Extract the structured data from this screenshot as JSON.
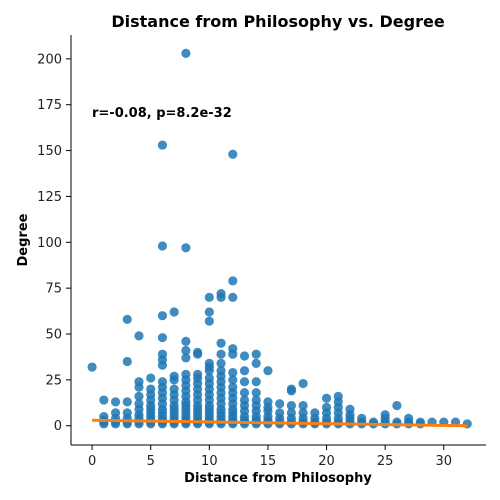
{
  "chart_data": {
    "type": "scatter",
    "title": "Distance from Philosophy vs. Degree",
    "xlabel": "Distance from Philosophy",
    "ylabel": "Degree",
    "annotation": "r=-0.08, p=8.2e-32",
    "xlim": [
      -1.8,
      33.6
    ],
    "ylim": [
      -10.5,
      213
    ],
    "xticks": [
      0,
      5,
      10,
      15,
      20,
      25,
      30
    ],
    "yticks": [
      0,
      25,
      50,
      75,
      100,
      125,
      150,
      175,
      200
    ],
    "point_color": "#1f77b4",
    "trend_color": "#ff7f0e",
    "points": [
      [
        0,
        32
      ],
      [
        1,
        1
      ],
      [
        1,
        2
      ],
      [
        1,
        3
      ],
      [
        1,
        5
      ],
      [
        1,
        14
      ],
      [
        2,
        1
      ],
      [
        2,
        2
      ],
      [
        2,
        4
      ],
      [
        2,
        7
      ],
      [
        2,
        13
      ],
      [
        3,
        1
      ],
      [
        3,
        2
      ],
      [
        3,
        4
      ],
      [
        3,
        7
      ],
      [
        3,
        13
      ],
      [
        3,
        35
      ],
      [
        3,
        58
      ],
      [
        4,
        1
      ],
      [
        4,
        2
      ],
      [
        4,
        4
      ],
      [
        4,
        6
      ],
      [
        4,
        9
      ],
      [
        4,
        12
      ],
      [
        4,
        16
      ],
      [
        4,
        21
      ],
      [
        4,
        24
      ],
      [
        4,
        49
      ],
      [
        5,
        1
      ],
      [
        5,
        2
      ],
      [
        5,
        3
      ],
      [
        5,
        5
      ],
      [
        5,
        7
      ],
      [
        5,
        9
      ],
      [
        5,
        11
      ],
      [
        5,
        14
      ],
      [
        5,
        17
      ],
      [
        5,
        20
      ],
      [
        5,
        26
      ],
      [
        6,
        1
      ],
      [
        6,
        2
      ],
      [
        6,
        3
      ],
      [
        6,
        5
      ],
      [
        6,
        7
      ],
      [
        6,
        9
      ],
      [
        6,
        12
      ],
      [
        6,
        15
      ],
      [
        6,
        18
      ],
      [
        6,
        21
      ],
      [
        6,
        24
      ],
      [
        6,
        33
      ],
      [
        6,
        36
      ],
      [
        6,
        39
      ],
      [
        6,
        48
      ],
      [
        6,
        60
      ],
      [
        6,
        98
      ],
      [
        6,
        153
      ],
      [
        7,
        1
      ],
      [
        7,
        2
      ],
      [
        7,
        3
      ],
      [
        7,
        5
      ],
      [
        7,
        7
      ],
      [
        7,
        9
      ],
      [
        7,
        11
      ],
      [
        7,
        14
      ],
      [
        7,
        17
      ],
      [
        7,
        20
      ],
      [
        7,
        25
      ],
      [
        7,
        27
      ],
      [
        7,
        62
      ],
      [
        8,
        1
      ],
      [
        8,
        2
      ],
      [
        8,
        3
      ],
      [
        8,
        5
      ],
      [
        8,
        7
      ],
      [
        8,
        9
      ],
      [
        8,
        11
      ],
      [
        8,
        13
      ],
      [
        8,
        16
      ],
      [
        8,
        19
      ],
      [
        8,
        22
      ],
      [
        8,
        25
      ],
      [
        8,
        28
      ],
      [
        8,
        37
      ],
      [
        8,
        41
      ],
      [
        8,
        46
      ],
      [
        8,
        97
      ],
      [
        8,
        203
      ],
      [
        9,
        1
      ],
      [
        9,
        2
      ],
      [
        9,
        3
      ],
      [
        9,
        5
      ],
      [
        9,
        7
      ],
      [
        9,
        9
      ],
      [
        9,
        11
      ],
      [
        9,
        14
      ],
      [
        9,
        17
      ],
      [
        9,
        20
      ],
      [
        9,
        23
      ],
      [
        9,
        26
      ],
      [
        9,
        28
      ],
      [
        9,
        39
      ],
      [
        9,
        40
      ],
      [
        10,
        1
      ],
      [
        10,
        2
      ],
      [
        10,
        3
      ],
      [
        10,
        5
      ],
      [
        10,
        7
      ],
      [
        10,
        9
      ],
      [
        10,
        11
      ],
      [
        10,
        14
      ],
      [
        10,
        17
      ],
      [
        10,
        20
      ],
      [
        10,
        23
      ],
      [
        10,
        26
      ],
      [
        10,
        30
      ],
      [
        10,
        32
      ],
      [
        10,
        34
      ],
      [
        10,
        57
      ],
      [
        10,
        62
      ],
      [
        10,
        70
      ],
      [
        11,
        1
      ],
      [
        11,
        2
      ],
      [
        11,
        3
      ],
      [
        11,
        5
      ],
      [
        11,
        7
      ],
      [
        11,
        9
      ],
      [
        11,
        12
      ],
      [
        11,
        15
      ],
      [
        11,
        18
      ],
      [
        11,
        21
      ],
      [
        11,
        24
      ],
      [
        11,
        27
      ],
      [
        11,
        30
      ],
      [
        11,
        34
      ],
      [
        11,
        39
      ],
      [
        11,
        45
      ],
      [
        11,
        70
      ],
      [
        11,
        72
      ],
      [
        12,
        1
      ],
      [
        12,
        2
      ],
      [
        12,
        3
      ],
      [
        12,
        5
      ],
      [
        12,
        7
      ],
      [
        12,
        9
      ],
      [
        12,
        12
      ],
      [
        12,
        15
      ],
      [
        12,
        18
      ],
      [
        12,
        21
      ],
      [
        12,
        25
      ],
      [
        12,
        29
      ],
      [
        12,
        39
      ],
      [
        12,
        42
      ],
      [
        12,
        70
      ],
      [
        12,
        79
      ],
      [
        12,
        148
      ],
      [
        13,
        1
      ],
      [
        13,
        2
      ],
      [
        13,
        3
      ],
      [
        13,
        5
      ],
      [
        13,
        8
      ],
      [
        13,
        11
      ],
      [
        13,
        14
      ],
      [
        13,
        18
      ],
      [
        13,
        24
      ],
      [
        13,
        30
      ],
      [
        13,
        38
      ],
      [
        14,
        1
      ],
      [
        14,
        2
      ],
      [
        14,
        3
      ],
      [
        14,
        5
      ],
      [
        14,
        8
      ],
      [
        14,
        11
      ],
      [
        14,
        14
      ],
      [
        14,
        18
      ],
      [
        14,
        24
      ],
      [
        14,
        34
      ],
      [
        14,
        39
      ],
      [
        15,
        1
      ],
      [
        15,
        2
      ],
      [
        15,
        3
      ],
      [
        15,
        5
      ],
      [
        15,
        8
      ],
      [
        15,
        10
      ],
      [
        15,
        13
      ],
      [
        15,
        30
      ],
      [
        16,
        1
      ],
      [
        16,
        2
      ],
      [
        16,
        4
      ],
      [
        16,
        7
      ],
      [
        16,
        12
      ],
      [
        17,
        1
      ],
      [
        17,
        2
      ],
      [
        17,
        4
      ],
      [
        17,
        7
      ],
      [
        17,
        11
      ],
      [
        17,
        19
      ],
      [
        17,
        20
      ],
      [
        18,
        1
      ],
      [
        18,
        2
      ],
      [
        18,
        4
      ],
      [
        18,
        7
      ],
      [
        18,
        11
      ],
      [
        18,
        23
      ],
      [
        19,
        1
      ],
      [
        19,
        2
      ],
      [
        19,
        4
      ],
      [
        19,
        7
      ],
      [
        20,
        1
      ],
      [
        20,
        2
      ],
      [
        20,
        4
      ],
      [
        20,
        7
      ],
      [
        20,
        10
      ],
      [
        20,
        15
      ],
      [
        21,
        1
      ],
      [
        21,
        2
      ],
      [
        21,
        4
      ],
      [
        21,
        7
      ],
      [
        21,
        10
      ],
      [
        21,
        13
      ],
      [
        21,
        16
      ],
      [
        22,
        1
      ],
      [
        22,
        2
      ],
      [
        22,
        4
      ],
      [
        22,
        6
      ],
      [
        22,
        9
      ],
      [
        23,
        1
      ],
      [
        23,
        2
      ],
      [
        23,
        4
      ],
      [
        24,
        1
      ],
      [
        24,
        2
      ],
      [
        25,
        1
      ],
      [
        25,
        2
      ],
      [
        25,
        4
      ],
      [
        25,
        6
      ],
      [
        26,
        1
      ],
      [
        26,
        2
      ],
      [
        26,
        11
      ],
      [
        27,
        1
      ],
      [
        27,
        2
      ],
      [
        27,
        4
      ],
      [
        28,
        1
      ],
      [
        28,
        2
      ],
      [
        29,
        2
      ],
      [
        30,
        2
      ],
      [
        31,
        2
      ],
      [
        32,
        1
      ]
    ],
    "trend": {
      "x": [
        0,
        32
      ],
      "y": [
        3.0,
        0.0
      ]
    }
  }
}
